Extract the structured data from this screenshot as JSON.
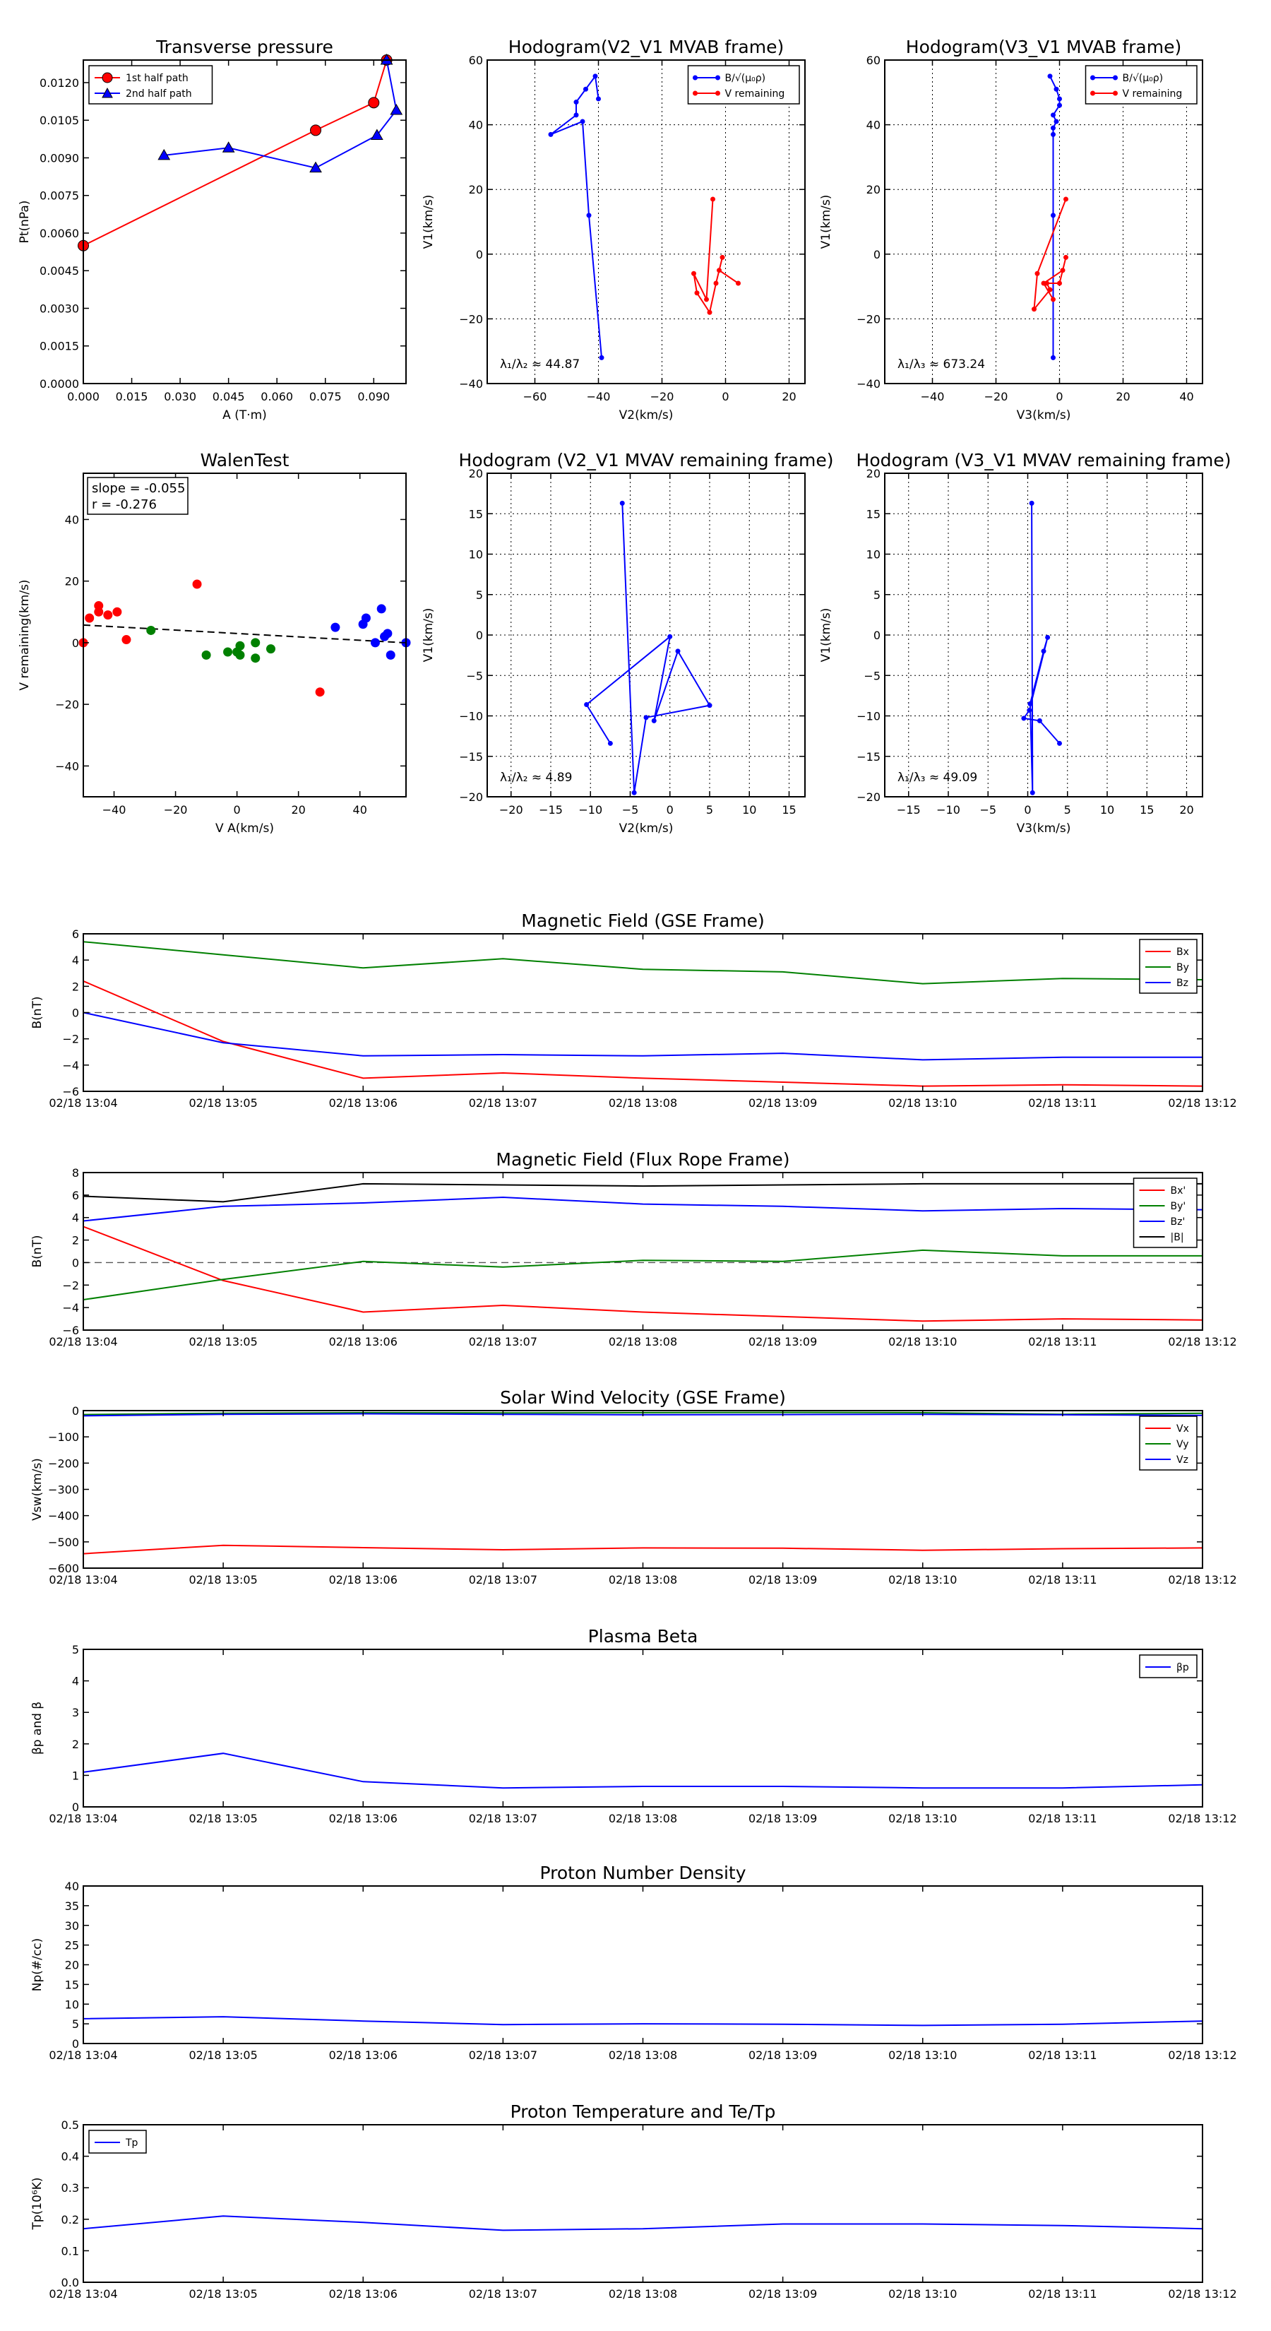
{
  "figure": {
    "background": "#ffffff"
  },
  "colors": {
    "red": "#ff0000",
    "blue": "#0000ff",
    "green": "#008000",
    "black": "#000000",
    "gray": "#808080"
  },
  "chart_data": [
    {
      "id": "transverse-pressure",
      "type": "line",
      "title": "Transverse pressure",
      "xlabel": "A (T·m)",
      "ylabel": "Pt(nPa)",
      "xlim": [
        0,
        0.1
      ],
      "ylim": [
        0,
        0.0129
      ],
      "xticks": [
        0,
        0.015,
        0.03,
        0.045,
        0.06,
        0.075,
        0.09
      ],
      "xticklabels": [
        "0.000",
        "0.015",
        "0.030",
        "0.045",
        "0.060",
        "0.075",
        "0.090"
      ],
      "yticks": [
        0,
        0.0015,
        0.003,
        0.0045,
        0.006,
        0.0075,
        0.009,
        0.0105,
        0.012
      ],
      "yticklabels": [
        "0.0000",
        "0.0015",
        "0.0030",
        "0.0045",
        "0.0060",
        "0.0075",
        "0.0090",
        "0.0105",
        "0.0120"
      ],
      "grid": false,
      "legend": "top-left",
      "series": [
        {
          "name": "1st half path",
          "color": "#ff0000",
          "marker": "circle",
          "x": [
            0.0,
            0.072,
            0.09,
            0.094
          ],
          "y": [
            0.0055,
            0.0101,
            0.0112,
            0.0129
          ]
        },
        {
          "name": "2nd half path",
          "color": "#0000ff",
          "marker": "triangle",
          "x": [
            0.094,
            0.097,
            0.091,
            0.072,
            0.045,
            0.025
          ],
          "y": [
            0.0129,
            0.0109,
            0.0099,
            0.0086,
            0.0094,
            0.0091
          ]
        }
      ]
    },
    {
      "id": "hodogram-v2-v1-mvab",
      "type": "line",
      "title": "Hodogram(V2_V1 MVAB frame)",
      "xlabel": "V2(km/s)",
      "ylabel": "V1(km/s)",
      "xlim": [
        -75,
        25
      ],
      "ylim": [
        -40,
        60
      ],
      "xticks": [
        -60,
        -40,
        -20,
        0,
        20
      ],
      "xticklabels": [
        "−60",
        "−40",
        "−20",
        "0",
        "20"
      ],
      "yticks": [
        -40,
        -20,
        0,
        20,
        40,
        60
      ],
      "yticklabels": [
        "−40",
        "−20",
        "0",
        "20",
        "40",
        "60"
      ],
      "grid": true,
      "legend": "top-right",
      "annotation": "λ₁/λ₂ ≈ 44.87",
      "series": [
        {
          "name": "B/√(μ₀ρ)",
          "color": "#0000ff",
          "marker": "dot",
          "x": [
            -39,
            -43,
            -45,
            -55,
            -47,
            -47,
            -44,
            -41,
            -40
          ],
          "y": [
            -32,
            12,
            41,
            37,
            43,
            47,
            51,
            55,
            48
          ]
        },
        {
          "name": "V remaining",
          "color": "#ff0000",
          "marker": "dot",
          "x": [
            -4,
            -6,
            -10,
            -9,
            -5,
            -3,
            -1,
            -2,
            4
          ],
          "y": [
            17,
            -14,
            -6,
            -12,
            -18,
            -9,
            -1,
            -5,
            -9
          ]
        }
      ]
    },
    {
      "id": "hodogram-v3-v1-mvab",
      "type": "line",
      "title": "Hodogram(V3_V1 MVAB frame)",
      "xlabel": "V3(km/s)",
      "ylabel": "V1(km/s)",
      "xlim": [
        -55,
        45
      ],
      "ylim": [
        -40,
        60
      ],
      "xticks": [
        -40,
        -20,
        0,
        20,
        40
      ],
      "xticklabels": [
        "−40",
        "−20",
        "0",
        "20",
        "40"
      ],
      "yticks": [
        -40,
        -20,
        0,
        20,
        40,
        60
      ],
      "yticklabels": [
        "−40",
        "−20",
        "0",
        "20",
        "40",
        "60"
      ],
      "grid": true,
      "legend": "top-right",
      "annotation": "λ₁/λ₃ ≈ 673.24",
      "series": [
        {
          "name": "B/√(μ₀ρ)",
          "color": "#0000ff",
          "marker": "dot",
          "x": [
            -2,
            -2,
            -2,
            -2,
            -1,
            -2,
            0,
            0,
            -1,
            -3
          ],
          "y": [
            -32,
            12,
            37,
            39,
            41,
            43,
            46,
            48,
            51,
            55
          ]
        },
        {
          "name": "V remaining",
          "color": "#ff0000",
          "marker": "dot",
          "x": [
            2,
            -7,
            -8,
            -3,
            -4,
            0,
            2,
            1,
            -5,
            -2
          ],
          "y": [
            17,
            -6,
            -17,
            -11,
            -9,
            -9,
            -1,
            -5,
            -9,
            -14
          ]
        }
      ]
    },
    {
      "id": "walen-test",
      "type": "scatter",
      "title": "WalenTest",
      "xlabel": "V A(km/s)",
      "ylabel": "V remaining(km/s)",
      "xlim": [
        -50,
        55
      ],
      "ylim": [
        -50,
        55
      ],
      "xticks": [
        -40,
        -20,
        0,
        20,
        40
      ],
      "xticklabels": [
        "−40",
        "−20",
        "0",
        "20",
        "40"
      ],
      "yticks": [
        -40,
        -20,
        0,
        20,
        40
      ],
      "yticklabels": [
        "−40",
        "−20",
        "0",
        "20",
        "40"
      ],
      "grid": false,
      "stats": {
        "slope_text": "slope = -0.055",
        "r_text": "r = -0.276"
      },
      "fit_line": {
        "slope": -0.055,
        "intercept": 3.0,
        "color": "#000000",
        "style": "dashed"
      },
      "series": [
        {
          "color": "#ff0000",
          "x": [
            -50,
            -48,
            -45,
            -45,
            -42,
            -39,
            -36,
            -13,
            27
          ],
          "y": [
            0,
            8,
            10,
            12,
            9,
            10,
            1,
            19,
            -16
          ]
        },
        {
          "color": "#008000",
          "x": [
            -28,
            -10,
            -3,
            0,
            1,
            1,
            6,
            6,
            11
          ],
          "y": [
            4,
            -4,
            -3,
            -3,
            -4,
            -1,
            0,
            -5,
            -2
          ]
        },
        {
          "color": "#0000ff",
          "x": [
            32,
            41,
            42,
            45,
            47,
            48,
            49,
            50,
            55
          ],
          "y": [
            5,
            6,
            8,
            0,
            11,
            2,
            3,
            -4,
            0
          ]
        }
      ]
    },
    {
      "id": "hodogram-v2-v1-mvav",
      "type": "line",
      "title": "Hodogram (V2_V1 MVAV remaining frame)",
      "xlabel": "V2(km/s)",
      "ylabel": "V1(km/s)",
      "xlim": [
        -23,
        17
      ],
      "ylim": [
        -20,
        20
      ],
      "xticks": [
        -20,
        -15,
        -10,
        -5,
        0,
        5,
        10,
        15
      ],
      "xticklabels": [
        "−20",
        "−15",
        "−10",
        "−5",
        "0",
        "5",
        "10",
        "15"
      ],
      "yticks": [
        -20,
        -15,
        -10,
        -5,
        0,
        5,
        10,
        15,
        20
      ],
      "yticklabels": [
        "−20",
        "−15",
        "−10",
        "−5",
        "0",
        "5",
        "10",
        "15",
        "20"
      ],
      "grid": true,
      "annotation": "λ₁/λ₂ ≈ 4.89",
      "series": [
        {
          "color": "#0000ff",
          "marker": "dot",
          "x": [
            -6,
            -4.5,
            -3,
            5,
            1,
            -2,
            0,
            -10.5,
            -7.5
          ],
          "y": [
            16.3,
            -19.5,
            -10.2,
            -8.7,
            -2,
            -10.6,
            -0.2,
            -8.6,
            -13.4
          ]
        }
      ]
    },
    {
      "id": "hodogram-v3-v1-mvav",
      "type": "line",
      "title": "Hodogram (V3_V1 MVAV remaining frame)",
      "xlabel": "V3(km/s)",
      "ylabel": "V1(km/s)",
      "xlim": [
        -18,
        22
      ],
      "ylim": [
        -20,
        20
      ],
      "xticks": [
        -15,
        -10,
        -5,
        0,
        5,
        10,
        15,
        20
      ],
      "xticklabels": [
        "−15",
        "−10",
        "−5",
        "0",
        "5",
        "10",
        "15",
        "20"
      ],
      "yticks": [
        -20,
        -15,
        -10,
        -5,
        0,
        5,
        10,
        15,
        20
      ],
      "yticklabels": [
        "−20",
        "−15",
        "−10",
        "−5",
        "0",
        "5",
        "10",
        "15",
        "20"
      ],
      "grid": true,
      "annotation": "λ₁/λ₃ ≈ 49.09",
      "series": [
        {
          "color": "#0000ff",
          "marker": "dot",
          "x": [
            0.5,
            0.6,
            0.3,
            2,
            2.5,
            0.2,
            -0.5,
            1.5,
            4
          ],
          "y": [
            16.3,
            -19.5,
            -8.5,
            -2,
            -0.3,
            -9.3,
            -10.3,
            -10.6,
            -13.4
          ]
        }
      ]
    },
    {
      "id": "magnetic-field-gse",
      "type": "line",
      "title": "Magnetic Field (GSE Frame)",
      "xlabel": "",
      "ylabel": "B(nT)",
      "x": [
        "02/18 13:04",
        "02/18 13:05",
        "02/18 13:06",
        "02/18 13:07",
        "02/18 13:08",
        "02/18 13:09",
        "02/18 13:10",
        "02/18 13:11",
        "02/18 13:12"
      ],
      "ylim": [
        -6,
        6
      ],
      "yticks": [
        -6,
        -4,
        -2,
        0,
        2,
        4,
        6
      ],
      "yticklabels": [
        "−6",
        "−4",
        "−2",
        "0",
        "2",
        "4",
        "6"
      ],
      "grid": false,
      "zero_line": true,
      "legend": "top-right",
      "series": [
        {
          "name": "Bx",
          "color": "#ff0000",
          "values": [
            2.4,
            -2.2,
            -5.0,
            -4.6,
            -5.0,
            -5.3,
            -5.6,
            -5.5,
            -5.6
          ]
        },
        {
          "name": "By",
          "color": "#008000",
          "values": [
            5.4,
            4.4,
            3.4,
            4.1,
            3.3,
            3.1,
            2.2,
            2.6,
            2.5
          ]
        },
        {
          "name": "Bz",
          "color": "#0000ff",
          "values": [
            0.0,
            -2.3,
            -3.3,
            -3.2,
            -3.3,
            -3.1,
            -3.6,
            -3.4,
            -3.4
          ]
        }
      ]
    },
    {
      "id": "magnetic-field-flux-rope",
      "type": "line",
      "title": "Magnetic Field (Flux Rope Frame)",
      "xlabel": "",
      "ylabel": "B(nT)",
      "x": [
        "02/18 13:04",
        "02/18 13:05",
        "02/18 13:06",
        "02/18 13:07",
        "02/18 13:08",
        "02/18 13:09",
        "02/18 13:10",
        "02/18 13:11",
        "02/18 13:12"
      ],
      "ylim": [
        -6,
        8
      ],
      "yticks": [
        -6,
        -4,
        -2,
        0,
        2,
        4,
        6,
        8
      ],
      "yticklabels": [
        "−6",
        "−4",
        "−2",
        "0",
        "2",
        "4",
        "6",
        "8"
      ],
      "grid": false,
      "zero_line": true,
      "legend": "top-right",
      "series": [
        {
          "name": "Bx'",
          "color": "#ff0000",
          "values": [
            3.2,
            -1.6,
            -4.4,
            -3.8,
            -4.4,
            -4.8,
            -5.2,
            -5.0,
            -5.1
          ]
        },
        {
          "name": "By'",
          "color": "#008000",
          "values": [
            -3.3,
            -1.5,
            0.1,
            -0.4,
            0.2,
            0.1,
            1.1,
            0.6,
            0.6
          ]
        },
        {
          "name": "Bz'",
          "color": "#0000ff",
          "values": [
            3.7,
            5.0,
            5.3,
            5.8,
            5.2,
            5.0,
            4.6,
            4.8,
            4.7
          ]
        },
        {
          "name": "|B|",
          "color": "#000000",
          "values": [
            5.9,
            5.4,
            7.0,
            6.9,
            6.8,
            6.9,
            7.0,
            7.0,
            7.0
          ]
        }
      ]
    },
    {
      "id": "solar-wind-velocity",
      "type": "line",
      "title": "Solar Wind Velocity (GSE Frame)",
      "xlabel": "",
      "ylabel": "Vsw(km/s)",
      "x": [
        "02/18 13:04",
        "02/18 13:05",
        "02/18 13:06",
        "02/18 13:07",
        "02/18 13:08",
        "02/18 13:09",
        "02/18 13:10",
        "02/18 13:11",
        "02/18 13:12"
      ],
      "ylim": [
        -600,
        0
      ],
      "yticks": [
        -600,
        -500,
        -400,
        -300,
        -200,
        -100,
        0
      ],
      "yticklabels": [
        "−600",
        "−500",
        "−400",
        "−300",
        "−200",
        "−100",
        "0"
      ],
      "grid": false,
      "legend": "top-right",
      "series": [
        {
          "name": "Vx",
          "color": "#ff0000",
          "values": [
            -545,
            -513,
            -522,
            -530,
            -523,
            -524,
            -532,
            -526,
            -523
          ]
        },
        {
          "name": "Vy",
          "color": "#008000",
          "values": [
            -15,
            -10,
            -8,
            -9,
            -8,
            -7,
            -8,
            -14,
            -10
          ]
        },
        {
          "name": "Vz",
          "color": "#0000ff",
          "values": [
            -20,
            -14,
            -12,
            -14,
            -16,
            -15,
            -14,
            -16,
            -18
          ]
        }
      ]
    },
    {
      "id": "plasma-beta",
      "type": "line",
      "title": "Plasma Beta",
      "xlabel": "",
      "ylabel": "βp and β",
      "x": [
        "02/18 13:04",
        "02/18 13:05",
        "02/18 13:06",
        "02/18 13:07",
        "02/18 13:08",
        "02/18 13:09",
        "02/18 13:10",
        "02/18 13:11",
        "02/18 13:12"
      ],
      "ylim": [
        0,
        5
      ],
      "yticks": [
        0,
        1,
        2,
        3,
        4,
        5
      ],
      "yticklabels": [
        "0",
        "1",
        "2",
        "3",
        "4",
        "5"
      ],
      "grid": false,
      "legend": "top-right",
      "series": [
        {
          "name": "βp",
          "color": "#0000ff",
          "values": [
            1.1,
            1.7,
            0.8,
            0.6,
            0.65,
            0.65,
            0.6,
            0.6,
            0.7
          ]
        }
      ]
    },
    {
      "id": "proton-number-density",
      "type": "line",
      "title": "Proton Number Density",
      "xlabel": "",
      "ylabel": "Np(#/cc)",
      "x": [
        "02/18 13:04",
        "02/18 13:05",
        "02/18 13:06",
        "02/18 13:07",
        "02/18 13:08",
        "02/18 13:09",
        "02/18 13:10",
        "02/18 13:11",
        "02/18 13:12"
      ],
      "ylim": [
        0,
        40
      ],
      "yticks": [
        0,
        5,
        10,
        15,
        20,
        25,
        30,
        35,
        40
      ],
      "yticklabels": [
        "0",
        "5",
        "10",
        "15",
        "20",
        "25",
        "30",
        "35",
        "40"
      ],
      "grid": false,
      "series": [
        {
          "color": "#0000ff",
          "values": [
            6.3,
            6.8,
            5.7,
            4.8,
            5.0,
            4.9,
            4.6,
            4.9,
            5.7
          ]
        }
      ]
    },
    {
      "id": "proton-temperature",
      "type": "line",
      "title": "Proton Temperature and Te/Tp",
      "xlabel": "",
      "ylabel": "Tp(10⁶K)",
      "x": [
        "02/18 13:04",
        "02/18 13:05",
        "02/18 13:06",
        "02/18 13:07",
        "02/18 13:08",
        "02/18 13:09",
        "02/18 13:10",
        "02/18 13:11",
        "02/18 13:12"
      ],
      "ylim": [
        0,
        0.5
      ],
      "yticks": [
        0,
        0.1,
        0.2,
        0.3,
        0.4,
        0.5
      ],
      "yticklabels": [
        "0.0",
        "0.1",
        "0.2",
        "0.3",
        "0.4",
        "0.5"
      ],
      "grid": false,
      "legend": "top-left",
      "series": [
        {
          "name": "Tp",
          "color": "#0000ff",
          "values": [
            0.17,
            0.21,
            0.19,
            0.165,
            0.17,
            0.185,
            0.185,
            0.18,
            0.17
          ]
        }
      ]
    }
  ]
}
